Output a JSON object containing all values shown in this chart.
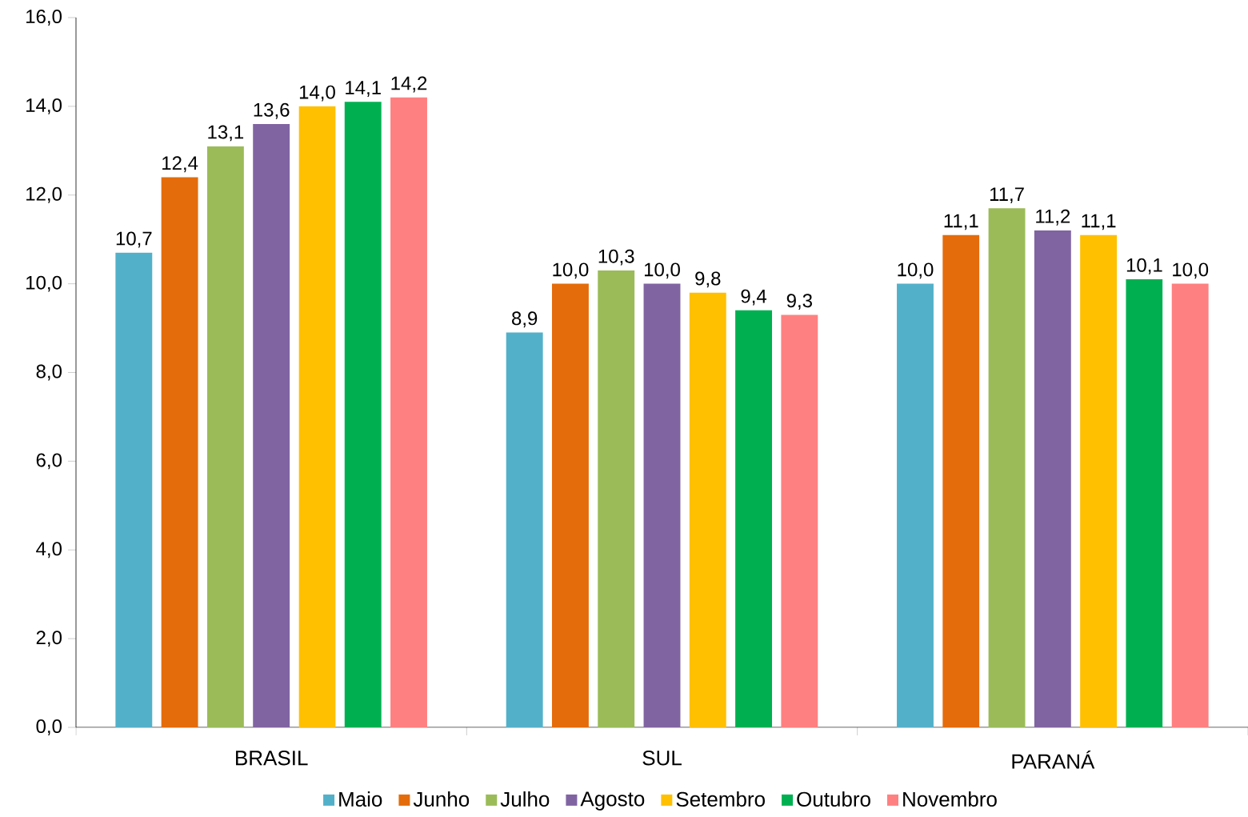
{
  "chart_data": {
    "type": "bar",
    "categories": [
      "BRASIL",
      "SUL",
      "PARANÁ"
    ],
    "series": [
      {
        "name": "Maio",
        "color": "#53b0c9",
        "values": [
          10.7,
          8.9,
          10.0
        ],
        "value_labels": [
          "10,7",
          "8,9",
          "10,0"
        ]
      },
      {
        "name": "Junho",
        "color": "#e46c0a",
        "values": [
          12.4,
          10.0,
          11.1
        ],
        "value_labels": [
          "12,4",
          "10,0",
          "11,1"
        ]
      },
      {
        "name": "Julho",
        "color": "#9bbb59",
        "values": [
          13.1,
          10.3,
          11.7
        ],
        "value_labels": [
          "13,1",
          "10,3",
          "11,7"
        ]
      },
      {
        "name": "Agosto",
        "color": "#8064a2",
        "values": [
          13.6,
          10.0,
          11.2
        ],
        "value_labels": [
          "13,6",
          "10,0",
          "11,2"
        ]
      },
      {
        "name": "Setembro",
        "color": "#ffc000",
        "values": [
          14.0,
          9.8,
          11.1
        ],
        "value_labels": [
          "14,0",
          "9,8",
          "11,1"
        ]
      },
      {
        "name": "Outubro",
        "color": "#00b050",
        "values": [
          14.1,
          9.4,
          10.1
        ],
        "value_labels": [
          "14,1",
          "9,4",
          "10,1"
        ]
      },
      {
        "name": "Novembro",
        "color": "#ff8080",
        "values": [
          14.2,
          9.3,
          10.0
        ],
        "value_labels": [
          "14,2",
          "9,3",
          "10,0"
        ]
      }
    ],
    "ylim": [
      0,
      16
    ],
    "yticks": [
      {
        "value": 0,
        "label": "0,0"
      },
      {
        "value": 2,
        "label": "2,0"
      },
      {
        "value": 4,
        "label": "4,0"
      },
      {
        "value": 6,
        "label": "6,0"
      },
      {
        "value": 8,
        "label": "8,0"
      },
      {
        "value": 10,
        "label": "10,0"
      },
      {
        "value": 12,
        "label": "12,0"
      },
      {
        "value": 14,
        "label": "14,0"
      },
      {
        "value": 16,
        "label": "16,0"
      }
    ],
    "grid": false,
    "legend": "bottom"
  }
}
